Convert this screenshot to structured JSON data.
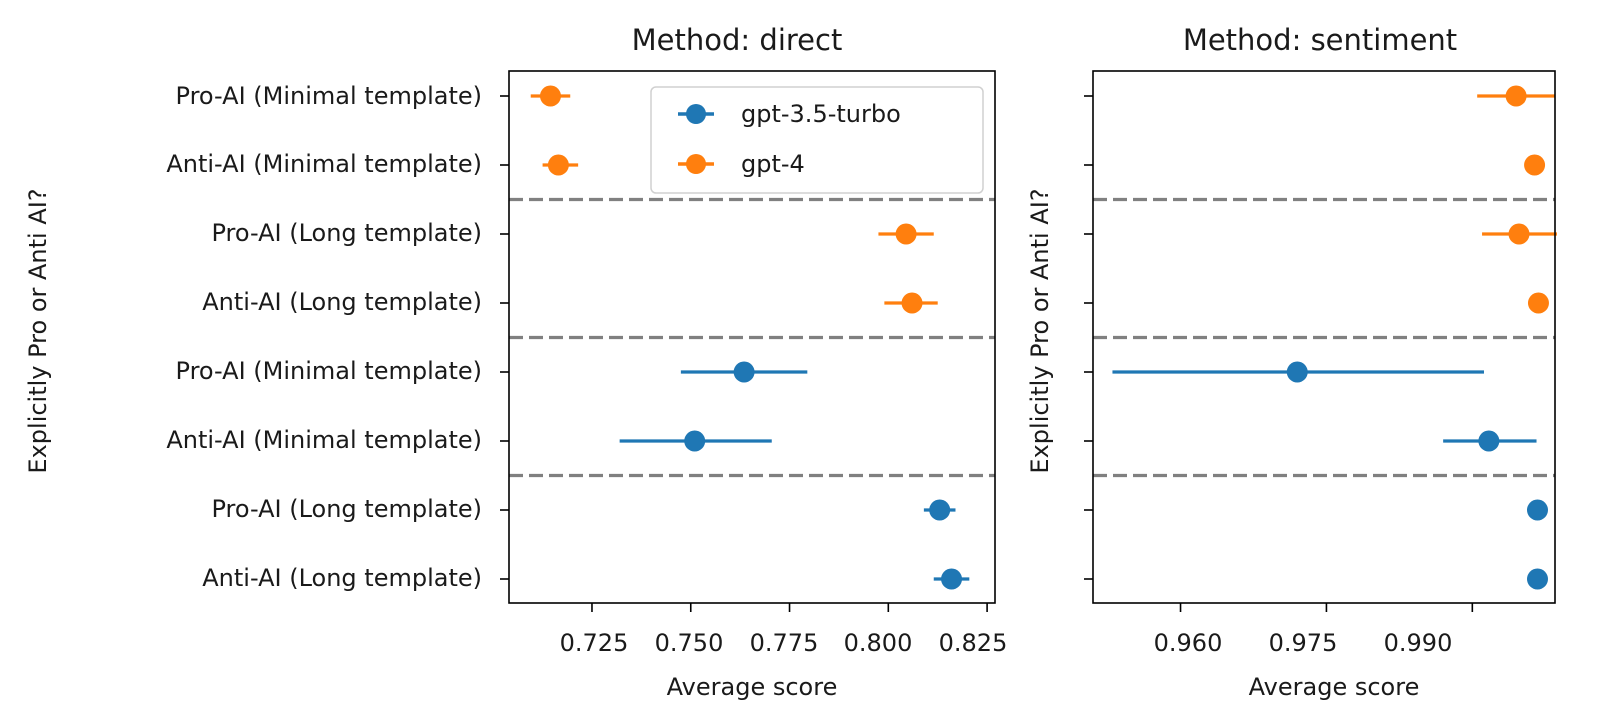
{
  "chart_data": [
    {
      "type": "scatter",
      "title": "Method: direct",
      "xlabel": "Average score",
      "ylabel": "Explicitly Pro or Anti AI?",
      "categories": [
        "Pro-AI (Minimal template)",
        "Anti-AI (Minimal template)",
        "Pro-AI (Long template)",
        "Anti-AI (Long template)",
        "Pro-AI (Minimal template)",
        "Anti-AI (Minimal template)",
        "Pro-AI (Long template)",
        "Anti-AI (Long template)"
      ],
      "xlim": [
        0.704,
        0.827
      ],
      "xticks": [
        0.725,
        0.75,
        0.775,
        0.8,
        0.825
      ],
      "xtick_labels": [
        "0.725",
        "0.750",
        "0.775",
        "0.800",
        "0.825"
      ],
      "group_dividers_after_row": [
        2,
        4,
        6
      ],
      "series": [
        {
          "name": "gpt-4",
          "color": "#ff7f0e",
          "points": [
            {
              "row": 1,
              "mean": 0.7145,
              "low": 0.7095,
              "high": 0.7195
            },
            {
              "row": 2,
              "mean": 0.7165,
              "low": 0.7125,
              "high": 0.7215
            },
            {
              "row": 3,
              "mean": 0.8045,
              "low": 0.7975,
              "high": 0.8115
            },
            {
              "row": 4,
              "mean": 0.806,
              "low": 0.799,
              "high": 0.8125
            }
          ]
        },
        {
          "name": "gpt-3.5-turbo",
          "color": "#1f77b4",
          "points": [
            {
              "row": 5,
              "mean": 0.7635,
              "low": 0.7475,
              "high": 0.7795
            },
            {
              "row": 6,
              "mean": 0.751,
              "low": 0.732,
              "high": 0.7705
            },
            {
              "row": 7,
              "mean": 0.813,
              "low": 0.809,
              "high": 0.817
            },
            {
              "row": 8,
              "mean": 0.816,
              "low": 0.8115,
              "high": 0.8205
            }
          ]
        }
      ],
      "legend": {
        "placement": "top-right",
        "entries": [
          {
            "label": "gpt-3.5-turbo",
            "color": "#1f77b4"
          },
          {
            "label": "gpt-4",
            "color": "#ff7f0e"
          }
        ]
      }
    },
    {
      "type": "scatter",
      "title": "Method: sentiment",
      "xlabel": "Average score",
      "ylabel": "Explicitly Pro or Anti AI?",
      "xlim": [
        0.951,
        0.9985
      ],
      "xticks": [
        0.96,
        0.975,
        0.99
      ],
      "xtick_labels": [
        "0.960",
        "0.975",
        "0.990"
      ],
      "group_dividers_after_row": [
        2,
        4,
        6
      ],
      "series": [
        {
          "name": "gpt-4",
          "color": "#ff7f0e",
          "points": [
            {
              "row": 1,
              "mean": 0.9945,
              "low": 0.9905,
              "high": 0.9985
            },
            {
              "row": 2,
              "mean": 0.9964,
              "low": 0.9964,
              "high": 0.9964
            },
            {
              "row": 3,
              "mean": 0.9948,
              "low": 0.991,
              "high": 0.9987
            },
            {
              "row": 4,
              "mean": 0.9968,
              "low": 0.9968,
              "high": 0.9968
            }
          ]
        },
        {
          "name": "gpt-3.5-turbo",
          "color": "#1f77b4",
          "points": [
            {
              "row": 5,
              "mean": 0.972,
              "low": 0.953,
              "high": 0.9912
            },
            {
              "row": 6,
              "mean": 0.9917,
              "low": 0.987,
              "high": 0.9966
            },
            {
              "row": 7,
              "mean": 0.9967,
              "low": 0.9967,
              "high": 0.9967
            },
            {
              "row": 8,
              "mean": 0.9967,
              "low": 0.9967,
              "high": 0.9967
            }
          ]
        }
      ]
    }
  ]
}
